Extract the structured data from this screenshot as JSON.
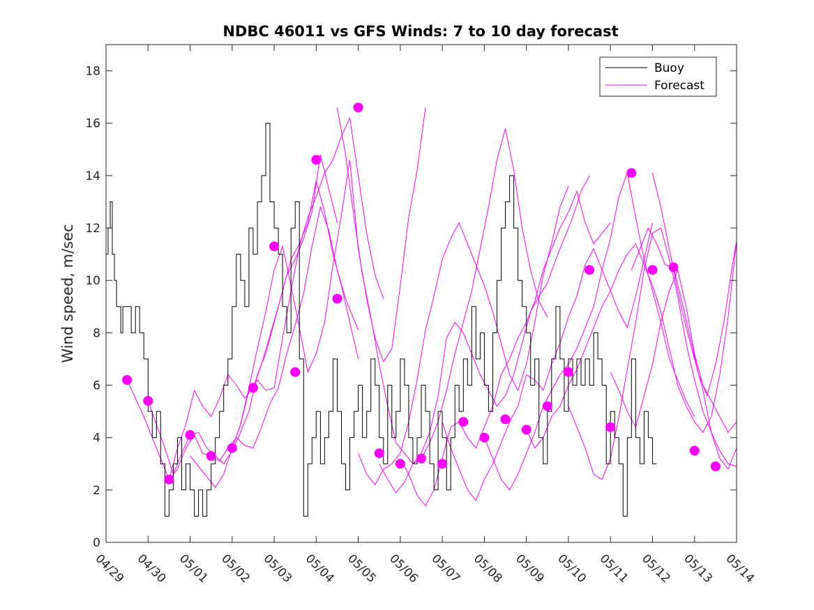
{
  "chart_data": {
    "type": "line",
    "title": "NDBC 46011 vs GFS Winds: 7 to 10 day forecast",
    "ylabel": "Wind speed, m/sec",
    "xlabel": "",
    "x_tick_labels": [
      "04/29",
      "04/30",
      "05/01",
      "05/02",
      "05/03",
      "05/04",
      "05/05",
      "05/06",
      "05/07",
      "05/08",
      "05/09",
      "05/10",
      "05/11",
      "05/12",
      "05/13",
      "05/14"
    ],
    "y_ticks": [
      0,
      2,
      4,
      6,
      8,
      10,
      12,
      14,
      16,
      18
    ],
    "xlim": [
      0,
      15
    ],
    "ylim": [
      0,
      19
    ],
    "grid": false,
    "legend": {
      "position": "top-right",
      "entries": [
        "Buoy",
        "Forecast"
      ]
    },
    "colors": {
      "buoy": "#000000",
      "forecast": "#ff00ff"
    },
    "buoy": {
      "name": "Buoy",
      "x": [
        0,
        0.05,
        0.1,
        0.15,
        0.2,
        0.25,
        0.3,
        0.35,
        0.4,
        0.5,
        0.6,
        0.7,
        0.8,
        0.9,
        1.0,
        1.1,
        1.2,
        1.3,
        1.4,
        1.5,
        1.6,
        1.7,
        1.8,
        1.9,
        2.0,
        2.1,
        2.2,
        2.3,
        2.4,
        2.5,
        2.6,
        2.7,
        2.8,
        2.9,
        3.0,
        3.1,
        3.2,
        3.3,
        3.4,
        3.5,
        3.6,
        3.7,
        3.8,
        3.9,
        4.0,
        4.1,
        4.2,
        4.3,
        4.4,
        4.5,
        4.6,
        4.7,
        4.8,
        4.9,
        5.0,
        5.1,
        5.2,
        5.3,
        5.4,
        5.5,
        5.6,
        5.7,
        5.8,
        5.9,
        6.0,
        6.1,
        6.2,
        6.3,
        6.4,
        6.5,
        6.6,
        6.7,
        6.8,
        6.9,
        7.0,
        7.1,
        7.2,
        7.3,
        7.4,
        7.5,
        7.6,
        7.7,
        7.8,
        7.9,
        8.0,
        8.1,
        8.2,
        8.3,
        8.4,
        8.5,
        8.6,
        8.7,
        8.8,
        8.9,
        9.0,
        9.1,
        9.2,
        9.3,
        9.4,
        9.5,
        9.6,
        9.7,
        9.8,
        9.9,
        10.0,
        10.1,
        10.2,
        10.3,
        10.4,
        10.5,
        10.6,
        10.7,
        10.8,
        10.9,
        11.0,
        11.1,
        11.2,
        11.3,
        11.4,
        11.5,
        11.6,
        11.7,
        11.8,
        11.9,
        12.0,
        12.1,
        12.2,
        12.3,
        12.4,
        12.5,
        12.6,
        12.7,
        12.8,
        12.9,
        13.0,
        13.1
      ],
      "y": [
        11,
        12,
        13,
        11,
        10,
        9,
        9,
        8,
        9,
        9,
        8,
        9,
        8,
        7,
        5,
        4,
        5,
        3,
        1,
        2,
        3,
        4,
        2,
        3,
        2,
        1,
        2,
        1,
        2,
        3,
        4,
        5,
        6,
        7,
        9,
        11,
        10,
        9,
        12,
        11,
        13,
        14,
        16,
        13,
        12,
        11,
        9,
        8,
        12,
        13,
        7,
        1,
        3,
        4,
        5,
        3,
        4,
        5,
        7,
        5,
        3,
        2,
        4,
        5,
        6,
        4,
        5,
        7,
        6,
        4,
        3,
        6,
        4,
        5,
        7,
        6,
        4,
        3,
        4,
        6,
        5,
        3,
        2,
        5,
        4,
        2,
        4,
        6,
        5,
        7,
        6,
        9,
        7,
        8,
        6,
        5,
        8,
        10,
        12,
        13,
        14,
        12,
        10,
        9,
        8,
        6,
        7,
        4,
        3,
        5,
        7,
        9,
        7,
        5,
        7,
        6,
        7,
        6,
        7,
        6,
        8,
        7,
        6,
        3,
        5,
        4,
        3,
        1,
        4,
        7,
        4,
        3,
        5,
        4,
        3,
        3
      ]
    },
    "forecast_dots": {
      "name": "Forecast",
      "x": [
        0.5,
        1.0,
        1.5,
        2.0,
        2.5,
        3.0,
        3.5,
        4.0,
        4.5,
        5.0,
        5.5,
        6.0,
        6.5,
        7.0,
        7.5,
        8.0,
        8.5,
        9.0,
        9.5,
        10.0,
        10.5,
        11.0,
        11.5,
        12.0,
        12.5,
        13.0,
        13.5,
        14.0,
        14.5
      ],
      "y": [
        6.2,
        5.4,
        2.4,
        4.1,
        3.3,
        3.6,
        5.9,
        11.3,
        6.5,
        14.6,
        9.3,
        16.6,
        3.4,
        3.0,
        3.2,
        3.0,
        4.6,
        4.0,
        4.7,
        4.3,
        5.2,
        6.5,
        10.4,
        4.4,
        14.1,
        10.4,
        10.5,
        3.5,
        2.9
      ]
    },
    "forecast_series": [
      {
        "x": [
          0.5,
          0.7,
          0.9,
          1.1,
          1.3,
          1.5,
          1.7,
          1.9,
          2.1,
          2.3,
          2.5,
          2.7,
          2.9,
          3.1,
          3.3,
          3.5,
          3.7,
          3.9,
          4.1,
          4.3,
          4.5,
          4.7,
          4.9,
          5.1,
          5.3,
          5.5
        ],
        "y": [
          6.2,
          5.5,
          4.8,
          4.0,
          3.2,
          2.4,
          3.6,
          4.5,
          5.8,
          5.2,
          4.8,
          5.5,
          6.4,
          6.0,
          5.5,
          5.9,
          6.8,
          7.9,
          9.0,
          10.2,
          10.8,
          11.6,
          12.6,
          14.8,
          13.5,
          12.2
        ]
      },
      {
        "x": [
          1.0,
          1.2,
          1.4,
          1.6,
          1.8,
          2.0,
          2.2,
          2.4,
          2.6,
          2.8,
          3.0,
          3.2,
          3.4,
          3.6,
          3.8,
          4.0,
          4.2,
          4.4,
          4.6,
          4.8,
          5.0,
          5.2,
          5.4,
          5.6,
          5.8,
          6.0
        ],
        "y": [
          5.4,
          4.5,
          3.6,
          2.6,
          3.4,
          4.1,
          4.2,
          3.6,
          3.3,
          3.0,
          3.5,
          4.2,
          5.0,
          6.4,
          7.2,
          8.4,
          9.6,
          10.8,
          11.4,
          12.2,
          13.8,
          12.6,
          11.0,
          9.8,
          8.4,
          7.0
        ]
      },
      {
        "x": [
          1.5,
          1.7,
          1.9,
          2.1,
          2.3,
          2.5,
          2.7,
          2.9,
          3.1,
          3.3,
          3.5,
          3.7,
          3.9,
          4.1,
          4.3,
          4.5,
          4.7,
          4.9,
          5.1,
          5.3,
          5.5,
          5.7,
          6.0
        ],
        "y": [
          2.4,
          2.8,
          3.6,
          4.1,
          3.4,
          3.3,
          3.1,
          3.6,
          4.0,
          3.7,
          3.6,
          4.4,
          5.3,
          5.9,
          7.2,
          8.3,
          9.5,
          11.3,
          12.8,
          11.9,
          10.4,
          9.3,
          8.1
        ]
      },
      {
        "x": [
          2.0,
          2.2,
          2.4,
          2.6,
          2.8,
          3.0,
          3.2,
          3.4,
          3.6,
          3.8,
          4.0,
          4.2,
          4.4,
          4.6,
          4.8,
          5.0,
          5.2,
          5.4,
          5.6,
          5.8,
          6.0,
          6.2,
          6.4,
          6.6
        ],
        "y": [
          3.3,
          2.9,
          2.5,
          2.1,
          2.6,
          3.6,
          4.5,
          5.8,
          6.2,
          5.8,
          5.9,
          7.8,
          9.6,
          11.3,
          12.4,
          13.2,
          14.1,
          14.6,
          15.5,
          16.2,
          14.0,
          11.8,
          10.2,
          9.3
        ]
      },
      {
        "x": [
          3.0,
          3.2,
          3.4,
          3.6,
          3.8,
          4.0,
          4.2,
          4.4,
          4.6,
          4.8,
          5.0,
          5.2,
          5.4,
          5.6,
          5.8,
          6.0,
          6.2,
          6.4,
          6.6,
          6.8,
          7.0,
          7.2,
          7.4,
          7.6
        ],
        "y": [
          3.6,
          4.5,
          5.9,
          7.4,
          8.8,
          10.4,
          11.3,
          9.8,
          8.2,
          6.5,
          7.2,
          8.4,
          10.6,
          12.5,
          14.6,
          11.2,
          9.3,
          7.8,
          6.9,
          7.4,
          9.8,
          12.4,
          14.2,
          16.6
        ]
      },
      {
        "x": [
          5.5,
          5.7,
          5.9,
          6.1,
          6.3,
          6.5,
          6.7,
          6.9,
          7.1,
          7.3,
          7.5,
          7.7,
          7.9,
          8.1,
          8.3,
          8.5,
          8.7,
          8.9,
          9.1,
          9.3,
          9.5,
          9.7,
          9.9,
          10.1,
          10.3,
          10.5
        ],
        "y": [
          16.6,
          14.8,
          12.4,
          10.2,
          8.6,
          6.8,
          5.2,
          3.8,
          3.4,
          3.0,
          3.2,
          3.8,
          4.6,
          5.8,
          7.2,
          8.4,
          9.6,
          11.2,
          12.8,
          14.6,
          15.8,
          14.2,
          12.0,
          10.4,
          9.2,
          8.6
        ]
      },
      {
        "x": [
          6.0,
          6.2,
          6.4,
          6.6,
          6.8,
          7.0,
          7.2,
          7.4,
          7.6,
          7.8,
          8.0,
          8.2,
          8.4,
          8.6,
          8.8,
          9.0,
          9.2,
          9.4,
          9.6,
          9.8,
          10.0,
          10.2,
          10.4,
          10.6,
          10.8,
          11.0
        ],
        "y": [
          3.4,
          2.6,
          2.2,
          2.8,
          3.0,
          3.4,
          4.6,
          6.2,
          8.1,
          9.4,
          10.8,
          11.6,
          12.2,
          11.4,
          10.6,
          9.8,
          8.8,
          7.6,
          6.4,
          5.8,
          6.8,
          8.4,
          10.2,
          11.4,
          12.8,
          13.6
        ]
      },
      {
        "x": [
          6.5,
          6.7,
          6.9,
          7.1,
          7.3,
          7.5,
          7.7,
          7.9,
          8.1,
          8.3,
          8.5,
          8.7,
          8.9,
          9.1,
          9.3,
          9.5,
          9.7,
          9.9,
          10.1,
          10.3,
          10.5,
          10.7,
          10.9,
          11.1,
          11.3,
          11.5
        ],
        "y": [
          3.0,
          2.4,
          1.9,
          2.3,
          3.0,
          3.4,
          4.2,
          5.6,
          7.8,
          8.4,
          8.0,
          7.2,
          6.4,
          5.8,
          5.2,
          5.6,
          6.4,
          7.6,
          8.8,
          9.4,
          9.9,
          10.8,
          11.6,
          12.4,
          13.4,
          14.0
        ]
      },
      {
        "x": [
          7.0,
          7.2,
          7.4,
          7.6,
          7.8,
          8.0,
          8.2,
          8.4,
          8.6,
          8.8,
          9.0,
          9.2,
          9.4,
          9.6,
          9.8,
          10.0,
          10.2,
          10.4,
          10.6,
          10.8,
          11.0,
          11.2,
          11.4,
          11.6,
          11.8,
          12.0
        ],
        "y": [
          3.2,
          2.6,
          1.8,
          1.4,
          2.0,
          3.2,
          4.4,
          4.6,
          4.0,
          3.6,
          4.4,
          5.2,
          6.4,
          7.0,
          7.8,
          8.4,
          9.2,
          10.4,
          11.2,
          12.0,
          12.6,
          13.4,
          12.2,
          11.4,
          11.8,
          12.2
        ]
      },
      {
        "x": [
          8.0,
          8.2,
          8.4,
          8.6,
          8.8,
          9.0,
          9.2,
          9.4,
          9.6,
          9.8,
          10.0,
          10.2,
          10.4,
          10.6,
          10.8,
          11.0,
          11.2,
          11.4,
          11.6,
          11.8,
          12.0,
          12.2,
          12.4,
          12.6,
          12.8,
          13.0
        ],
        "y": [
          4.6,
          3.6,
          2.8,
          2.0,
          1.6,
          2.4,
          3.0,
          3.8,
          4.6,
          5.2,
          6.4,
          6.2,
          5.8,
          6.8,
          7.6,
          8.6,
          9.4,
          10.6,
          11.2,
          10.4,
          9.6,
          8.8,
          8.2,
          9.4,
          10.8,
          12.2
        ]
      },
      {
        "x": [
          9.0,
          9.2,
          9.4,
          9.6,
          9.8,
          10.0,
          10.2,
          10.4,
          10.6,
          10.8,
          11.0,
          11.2,
          11.4,
          11.6,
          11.8,
          12.0,
          12.2,
          12.4,
          12.6,
          12.8,
          13.0,
          13.2,
          13.4,
          13.6,
          13.8,
          14.0
        ],
        "y": [
          4.0,
          3.2,
          2.4,
          2.0,
          2.6,
          3.4,
          4.2,
          5.2,
          5.8,
          6.4,
          6.8,
          7.4,
          8.2,
          9.0,
          10.4,
          11.6,
          13.2,
          14.1,
          12.4,
          10.8,
          9.6,
          8.4,
          7.0,
          6.2,
          5.4,
          4.8
        ]
      },
      {
        "x": [
          10.0,
          10.2,
          10.4,
          10.6,
          10.8,
          11.0,
          11.2,
          11.4,
          11.6,
          11.8,
          12.0,
          12.2,
          12.4,
          12.6,
          12.8,
          13.0,
          13.2,
          13.4,
          13.6,
          13.8,
          14.0,
          14.2,
          14.4,
          14.6,
          14.8,
          15.0
        ],
        "y": [
          4.3,
          3.6,
          4.0,
          4.8,
          5.2,
          6.0,
          6.6,
          7.4,
          8.2,
          9.0,
          9.6,
          10.4,
          11.0,
          11.4,
          10.6,
          9.8,
          8.8,
          7.4,
          6.0,
          5.2,
          4.6,
          4.2,
          4.8,
          6.4,
          8.6,
          11.5
        ]
      },
      {
        "x": [
          11.0,
          11.2,
          11.4,
          11.6,
          11.8,
          12.0,
          12.2,
          12.4,
          12.6,
          12.8,
          13.0,
          13.2,
          13.4,
          13.6,
          13.8,
          14.0,
          14.2,
          14.4,
          14.6,
          14.8,
          15.0
        ],
        "y": [
          5.2,
          4.4,
          3.6,
          2.6,
          2.4,
          3.2,
          4.8,
          6.6,
          8.4,
          10.4,
          11.8,
          12.0,
          10.8,
          9.4,
          7.6,
          6.2,
          5.0,
          4.2,
          3.2,
          2.8,
          3.6
        ]
      },
      {
        "x": [
          12.0,
          12.2,
          12.4,
          12.6,
          12.8,
          13.0,
          13.2,
          13.4,
          13.6,
          13.8,
          14.0,
          14.2,
          14.4,
          14.6,
          14.8,
          15.0
        ],
        "y": [
          6.5,
          5.8,
          5.0,
          4.4,
          5.6,
          6.8,
          8.4,
          9.6,
          10.4,
          9.0,
          7.2,
          6.0,
          5.4,
          4.8,
          4.2,
          4.6
        ]
      },
      {
        "x": [
          12.5,
          12.7,
          12.9,
          13.1,
          13.3,
          13.5,
          13.7,
          13.9,
          14.1,
          14.3,
          14.5,
          14.7,
          14.9,
          15.0
        ],
        "y": [
          10.4,
          11.2,
          12.0,
          11.4,
          10.6,
          10.5,
          9.2,
          7.8,
          6.4,
          5.6,
          6.8,
          8.4,
          10.6,
          11.5
        ]
      },
      {
        "x": [
          13.0,
          13.2,
          13.4,
          13.6,
          13.8,
          14.0,
          14.2,
          14.4,
          14.6,
          14.8,
          15.0
        ],
        "y": [
          14.1,
          12.8,
          11.2,
          9.6,
          8.2,
          7.0,
          5.8,
          4.2,
          3.5,
          3.0,
          2.9
        ]
      }
    ]
  }
}
